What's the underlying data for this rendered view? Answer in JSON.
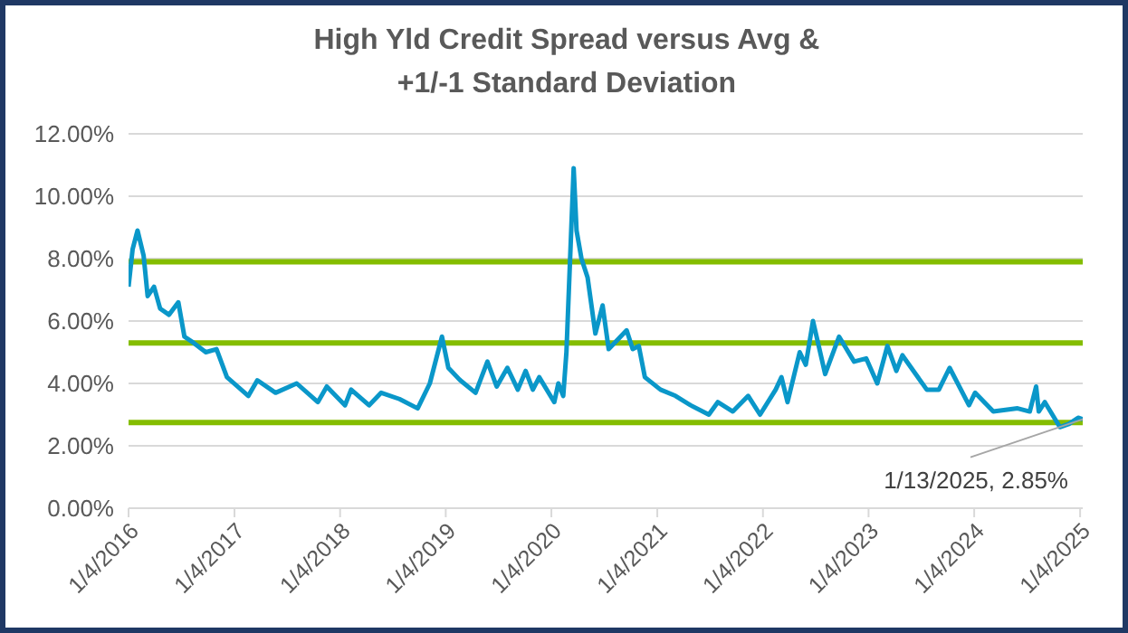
{
  "chart_data": {
    "type": "line",
    "title": "High Yld Credit Spread versus Avg & +1/-1 Standard Deviation",
    "x": [
      "2016-01-04",
      "2016-01-18",
      "2016-02-04",
      "2016-02-25",
      "2016-03-10",
      "2016-04-01",
      "2016-04-22",
      "2016-05-23",
      "2016-06-24",
      "2016-07-15",
      "2016-08-16",
      "2016-09-27",
      "2016-11-03",
      "2016-12-09",
      "2017-02-21",
      "2017-03-24",
      "2017-05-26",
      "2017-08-07",
      "2017-10-19",
      "2017-11-19",
      "2018-01-21",
      "2018-02-11",
      "2018-04-14",
      "2018-05-26",
      "2018-07-28",
      "2018-09-29",
      "2018-11-10",
      "2018-12-22",
      "2019-01-13",
      "2019-02-23",
      "2019-04-17",
      "2019-05-28",
      "2019-06-29",
      "2019-08-05",
      "2019-09-10",
      "2019-10-07",
      "2019-11-01",
      "2019-11-23",
      "2020-01-14",
      "2020-01-28",
      "2020-02-14",
      "2020-02-25",
      "2020-03-21",
      "2020-03-31",
      "2020-04-17",
      "2020-05-08",
      "2020-06-04",
      "2020-06-29",
      "2020-07-20",
      "2020-09-20",
      "2020-10-11",
      "2020-11-01",
      "2020-11-22",
      "2021-01-15",
      "2021-03-08",
      "2021-04-29",
      "2021-07-01",
      "2021-08-01",
      "2021-09-22",
      "2021-11-14",
      "2021-12-25",
      "2022-02-17",
      "2022-03-09",
      "2022-03-30",
      "2022-05-11",
      "2022-06-01",
      "2022-06-26",
      "2022-08-07",
      "2022-09-24",
      "2022-11-15",
      "2022-12-27",
      "2023-02-03",
      "2023-03-10",
      "2023-04-10",
      "2023-05-01",
      "2023-07-24",
      "2023-09-04",
      "2023-10-11",
      "2023-12-17",
      "2024-01-07",
      "2024-03-10",
      "2024-06-02",
      "2024-07-14",
      "2024-08-05",
      "2024-08-14",
      "2024-09-04",
      "2024-10-26",
      "2024-11-26",
      "2024-12-28",
      "2025-01-13"
    ],
    "series": [
      {
        "color": "#0a97c9",
        "values": [
          7.1,
          8.3,
          8.9,
          8.1,
          6.8,
          7.1,
          6.4,
          6.2,
          6.6,
          5.5,
          5.3,
          5.0,
          5.1,
          4.2,
          3.6,
          4.1,
          3.7,
          4.0,
          3.4,
          3.9,
          3.3,
          3.8,
          3.3,
          3.7,
          3.5,
          3.2,
          4.0,
          5.5,
          4.5,
          4.1,
          3.7,
          4.7,
          3.9,
          4.5,
          3.8,
          4.4,
          3.8,
          4.2,
          3.4,
          4.0,
          3.6,
          5.0,
          10.9,
          8.9,
          8.0,
          7.4,
          5.6,
          6.5,
          5.1,
          5.7,
          5.1,
          5.2,
          4.2,
          3.8,
          3.6,
          3.3,
          3.0,
          3.4,
          3.1,
          3.6,
          3.0,
          3.8,
          4.2,
          3.4,
          5.0,
          4.6,
          6.0,
          4.3,
          5.5,
          4.7,
          4.8,
          4.0,
          5.2,
          4.4,
          4.9,
          3.8,
          3.8,
          4.5,
          3.3,
          3.7,
          3.1,
          3.2,
          3.1,
          3.9,
          3.1,
          3.4,
          2.6,
          2.7,
          2.9,
          2.85
        ]
      }
    ],
    "ref_lines": [
      {
        "axis": "y",
        "value": 7.9,
        "color": "#84bd00"
      },
      {
        "axis": "y",
        "value": 5.3,
        "color": "#84bd00"
      },
      {
        "axis": "y",
        "value": 2.75,
        "color": "#84bd00"
      }
    ],
    "annotations": [
      {
        "text": "1/13/2025, 2.85%",
        "x": "2025-01-13",
        "y": 2.85
      }
    ],
    "xlim": [
      "2016-01-04",
      "2025-01-13"
    ],
    "xticks": [
      {
        "value": "2016-01-04",
        "label": "1/4/2016"
      },
      {
        "value": "2017-01-04",
        "label": "1/4/2017"
      },
      {
        "value": "2018-01-04",
        "label": "1/4/2018"
      },
      {
        "value": "2019-01-04",
        "label": "1/4/2019"
      },
      {
        "value": "2020-01-04",
        "label": "1/4/2020"
      },
      {
        "value": "2021-01-04",
        "label": "1/4/2021"
      },
      {
        "value": "2022-01-04",
        "label": "1/4/2022"
      },
      {
        "value": "2023-01-04",
        "label": "1/4/2023"
      },
      {
        "value": "2024-01-04",
        "label": "1/4/2024"
      },
      {
        "value": "2025-01-04",
        "label": "1/4/2025"
      }
    ],
    "ylim": [
      0,
      12
    ],
    "yticks": [
      {
        "value": 0,
        "label": "0.00%"
      },
      {
        "value": 2,
        "label": "2.00%"
      },
      {
        "value": 4,
        "label": "4.00%"
      },
      {
        "value": 6,
        "label": "6.00%"
      },
      {
        "value": 8,
        "label": "8.00%"
      },
      {
        "value": 10,
        "label": "10.00%"
      },
      {
        "value": 12,
        "label": "12.00%"
      }
    ],
    "grid": "y",
    "legend": false,
    "marker": "none",
    "line_style": "solid"
  }
}
